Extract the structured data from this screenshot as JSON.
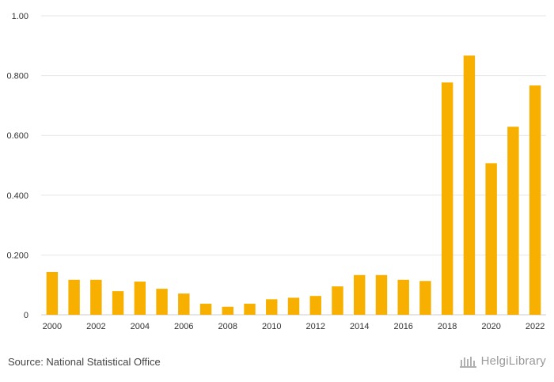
{
  "chart_data": {
    "type": "bar",
    "categories": [
      "2000",
      "2001",
      "2002",
      "2003",
      "2004",
      "2005",
      "2006",
      "2007",
      "2008",
      "2009",
      "2010",
      "2011",
      "2012",
      "2013",
      "2014",
      "2015",
      "2016",
      "2017",
      "2018",
      "2019",
      "2020",
      "2021",
      "2022"
    ],
    "values": [
      0.143,
      0.117,
      0.117,
      0.079,
      0.111,
      0.087,
      0.071,
      0.037,
      0.027,
      0.037,
      0.052,
      0.057,
      0.063,
      0.095,
      0.133,
      0.133,
      0.117,
      0.113,
      0.777,
      0.867,
      0.507,
      0.629,
      0.767
    ],
    "x_tick_labels": [
      "2000",
      "2002",
      "2004",
      "2006",
      "2008",
      "2010",
      "2012",
      "2014",
      "2016",
      "2018",
      "2020",
      "2022"
    ],
    "y_ticks": [
      0,
      0.2,
      0.4,
      0.6,
      0.8,
      1.0
    ],
    "y_tick_labels": [
      "0",
      "0.200",
      "0.400",
      "0.600",
      "0.800",
      "1.00"
    ],
    "ylim": [
      0,
      1.0
    ],
    "title": "",
    "xlabel": "",
    "ylabel": "",
    "grid": true,
    "bar_color": "#f7b000"
  },
  "footer": {
    "source": "Source: National Statistical Office",
    "brand": "HelgiLibrary"
  },
  "colors": {
    "grid": "#e6e6e6",
    "text": "#333333",
    "brand": "#9a9a9a"
  }
}
